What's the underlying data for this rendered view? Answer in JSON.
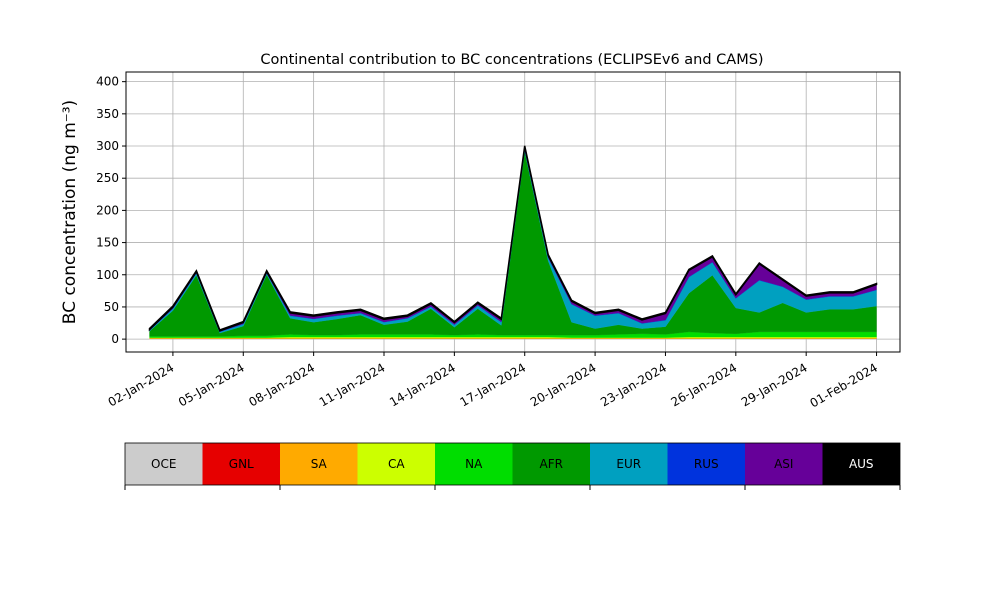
{
  "chart_data": {
    "type": "stacked-area",
    "title": "Continental contribution to BC concentrations (ECLIPSEv6 and CAMS)",
    "y_label": "BC concentration (ng m⁻³)",
    "x": [
      "2024-01-01",
      "2024-01-02",
      "2024-01-03",
      "2024-01-04",
      "2024-01-05",
      "2024-01-06",
      "2024-01-07",
      "2024-01-08",
      "2024-01-09",
      "2024-01-10",
      "2024-01-11",
      "2024-01-12",
      "2024-01-13",
      "2024-01-14",
      "2024-01-15",
      "2024-01-16",
      "2024-01-17",
      "2024-01-18",
      "2024-01-19",
      "2024-01-20",
      "2024-01-21",
      "2024-01-22",
      "2024-01-23",
      "2024-01-24",
      "2024-01-25",
      "2024-01-26",
      "2024-01-27",
      "2024-01-28",
      "2024-01-29",
      "2024-01-30",
      "2024-01-31",
      "2024-02-01"
    ],
    "xlim": [
      "2023-12-31",
      "2024-02-02"
    ],
    "xticks": [
      {
        "value": "2024-01-02",
        "label": "02-Jan-2024"
      },
      {
        "value": "2024-01-05",
        "label": "05-Jan-2024"
      },
      {
        "value": "2024-01-08",
        "label": "08-Jan-2024"
      },
      {
        "value": "2024-01-11",
        "label": "11-Jan-2024"
      },
      {
        "value": "2024-01-14",
        "label": "14-Jan-2024"
      },
      {
        "value": "2024-01-17",
        "label": "17-Jan-2024"
      },
      {
        "value": "2024-01-20",
        "label": "20-Jan-2024"
      },
      {
        "value": "2024-01-23",
        "label": "23-Jan-2024"
      },
      {
        "value": "2024-01-26",
        "label": "26-Jan-2024"
      },
      {
        "value": "2024-01-29",
        "label": "29-Jan-2024"
      },
      {
        "value": "2024-02-01",
        "label": "01-Feb-2024"
      }
    ],
    "ylim": [
      -20,
      415
    ],
    "yticks": [
      0,
      50,
      100,
      150,
      200,
      250,
      300,
      350,
      400
    ],
    "grid": true,
    "series": [
      {
        "name": "OCE",
        "color": "#cccccc",
        "values": [
          0.5,
          0.5,
          0.5,
          0.5,
          0.5,
          0.5,
          0.5,
          0.5,
          0.5,
          0.5,
          0.5,
          0.5,
          0.5,
          0.5,
          0.5,
          0.5,
          0.5,
          0.5,
          0.5,
          0.5,
          0.5,
          0.5,
          0.5,
          0.5,
          0.5,
          0.5,
          0.5,
          0.5,
          0.5,
          0.5,
          0.5,
          0.5
        ]
      },
      {
        "name": "GNL",
        "color": "#e60000",
        "values": [
          0.3,
          0.3,
          0.3,
          0.3,
          0.3,
          0.3,
          0.3,
          0.3,
          0.3,
          0.3,
          0.3,
          0.3,
          0.3,
          0.3,
          0.3,
          0.3,
          0.3,
          0.3,
          0.3,
          0.3,
          0.3,
          0.3,
          0.3,
          0.3,
          0.3,
          0.3,
          0.3,
          0.3,
          0.3,
          0.3,
          0.3,
          0.3
        ]
      },
      {
        "name": "SA",
        "color": "#ffaa00",
        "values": [
          0.5,
          0.5,
          0.5,
          0.5,
          0.5,
          0.5,
          0.5,
          0.5,
          0.5,
          0.5,
          0.5,
          0.5,
          0.5,
          0.5,
          0.5,
          0.5,
          0.5,
          0.5,
          0.5,
          0.5,
          0.5,
          0.5,
          0.5,
          0.5,
          0.5,
          0.5,
          0.5,
          0.5,
          0.5,
          0.5,
          0.5,
          0.5
        ]
      },
      {
        "name": "CA",
        "color": "#ccff00",
        "values": [
          1,
          1,
          1,
          1,
          1,
          1,
          2,
          2,
          2,
          2,
          2,
          2,
          2,
          2,
          2,
          2,
          2,
          2,
          1,
          1,
          1,
          1,
          1,
          2,
          2,
          2,
          2,
          2,
          2,
          2,
          2,
          2
        ]
      },
      {
        "name": "NA",
        "color": "#00dd00",
        "values": [
          2,
          2,
          2,
          2,
          3,
          3,
          4,
          3,
          3,
          4,
          4,
          4,
          4,
          3,
          4,
          3,
          3,
          3,
          4,
          4,
          5,
          6,
          5,
          8,
          6,
          5,
          8,
          8,
          8,
          8,
          8,
          8
        ]
      },
      {
        "name": "AFR",
        "color": "#009900",
        "values": [
          8,
          40,
          95,
          5,
          15,
          95,
          25,
          20,
          25,
          30,
          15,
          20,
          40,
          12,
          40,
          15,
          285,
          115,
          20,
          10,
          15,
          8,
          12,
          60,
          90,
          40,
          30,
          45,
          30,
          35,
          35,
          40
        ]
      },
      {
        "name": "EUR",
        "color": "#00a0c0",
        "values": [
          1,
          3,
          3,
          2,
          3,
          2,
          4,
          5,
          5,
          3,
          4,
          5,
          3,
          4,
          5,
          5,
          3,
          5,
          28,
          20,
          18,
          8,
          10,
          25,
          20,
          15,
          50,
          25,
          20,
          20,
          20,
          25
        ]
      },
      {
        "name": "RUS",
        "color": "#0033dd",
        "values": [
          0.5,
          0.5,
          0.5,
          0.5,
          0.5,
          0.5,
          0.5,
          0.5,
          0.5,
          0.5,
          0.5,
          0.5,
          0.5,
          0.5,
          0.5,
          0.5,
          0.5,
          0.5,
          0.5,
          0.5,
          0.5,
          0.5,
          0.5,
          0.5,
          0.5,
          0.5,
          0.5,
          0.5,
          0.5,
          0.5,
          0.5,
          0.5
        ]
      },
      {
        "name": "ASI",
        "color": "#660099",
        "values": [
          1,
          2,
          2,
          1,
          2,
          2,
          4,
          4,
          4,
          4,
          4,
          3,
          4,
          3,
          3,
          4,
          4,
          3,
          4,
          3,
          4,
          5,
          10,
          10,
          8,
          5,
          25,
          10,
          5,
          5,
          5,
          8
        ]
      },
      {
        "name": "AUS",
        "color": "#000000",
        "values": [
          1.5,
          1.5,
          1.5,
          1.5,
          1.5,
          1.5,
          1.5,
          1.5,
          1.5,
          1.5,
          1.5,
          1.5,
          1.5,
          1.5,
          1.5,
          1.5,
          1.5,
          1.5,
          1.5,
          1.5,
          1.5,
          1.5,
          1.5,
          1.5,
          1.5,
          1.5,
          1.5,
          1.5,
          1.5,
          1.5,
          1.5,
          1.5
        ]
      }
    ]
  }
}
